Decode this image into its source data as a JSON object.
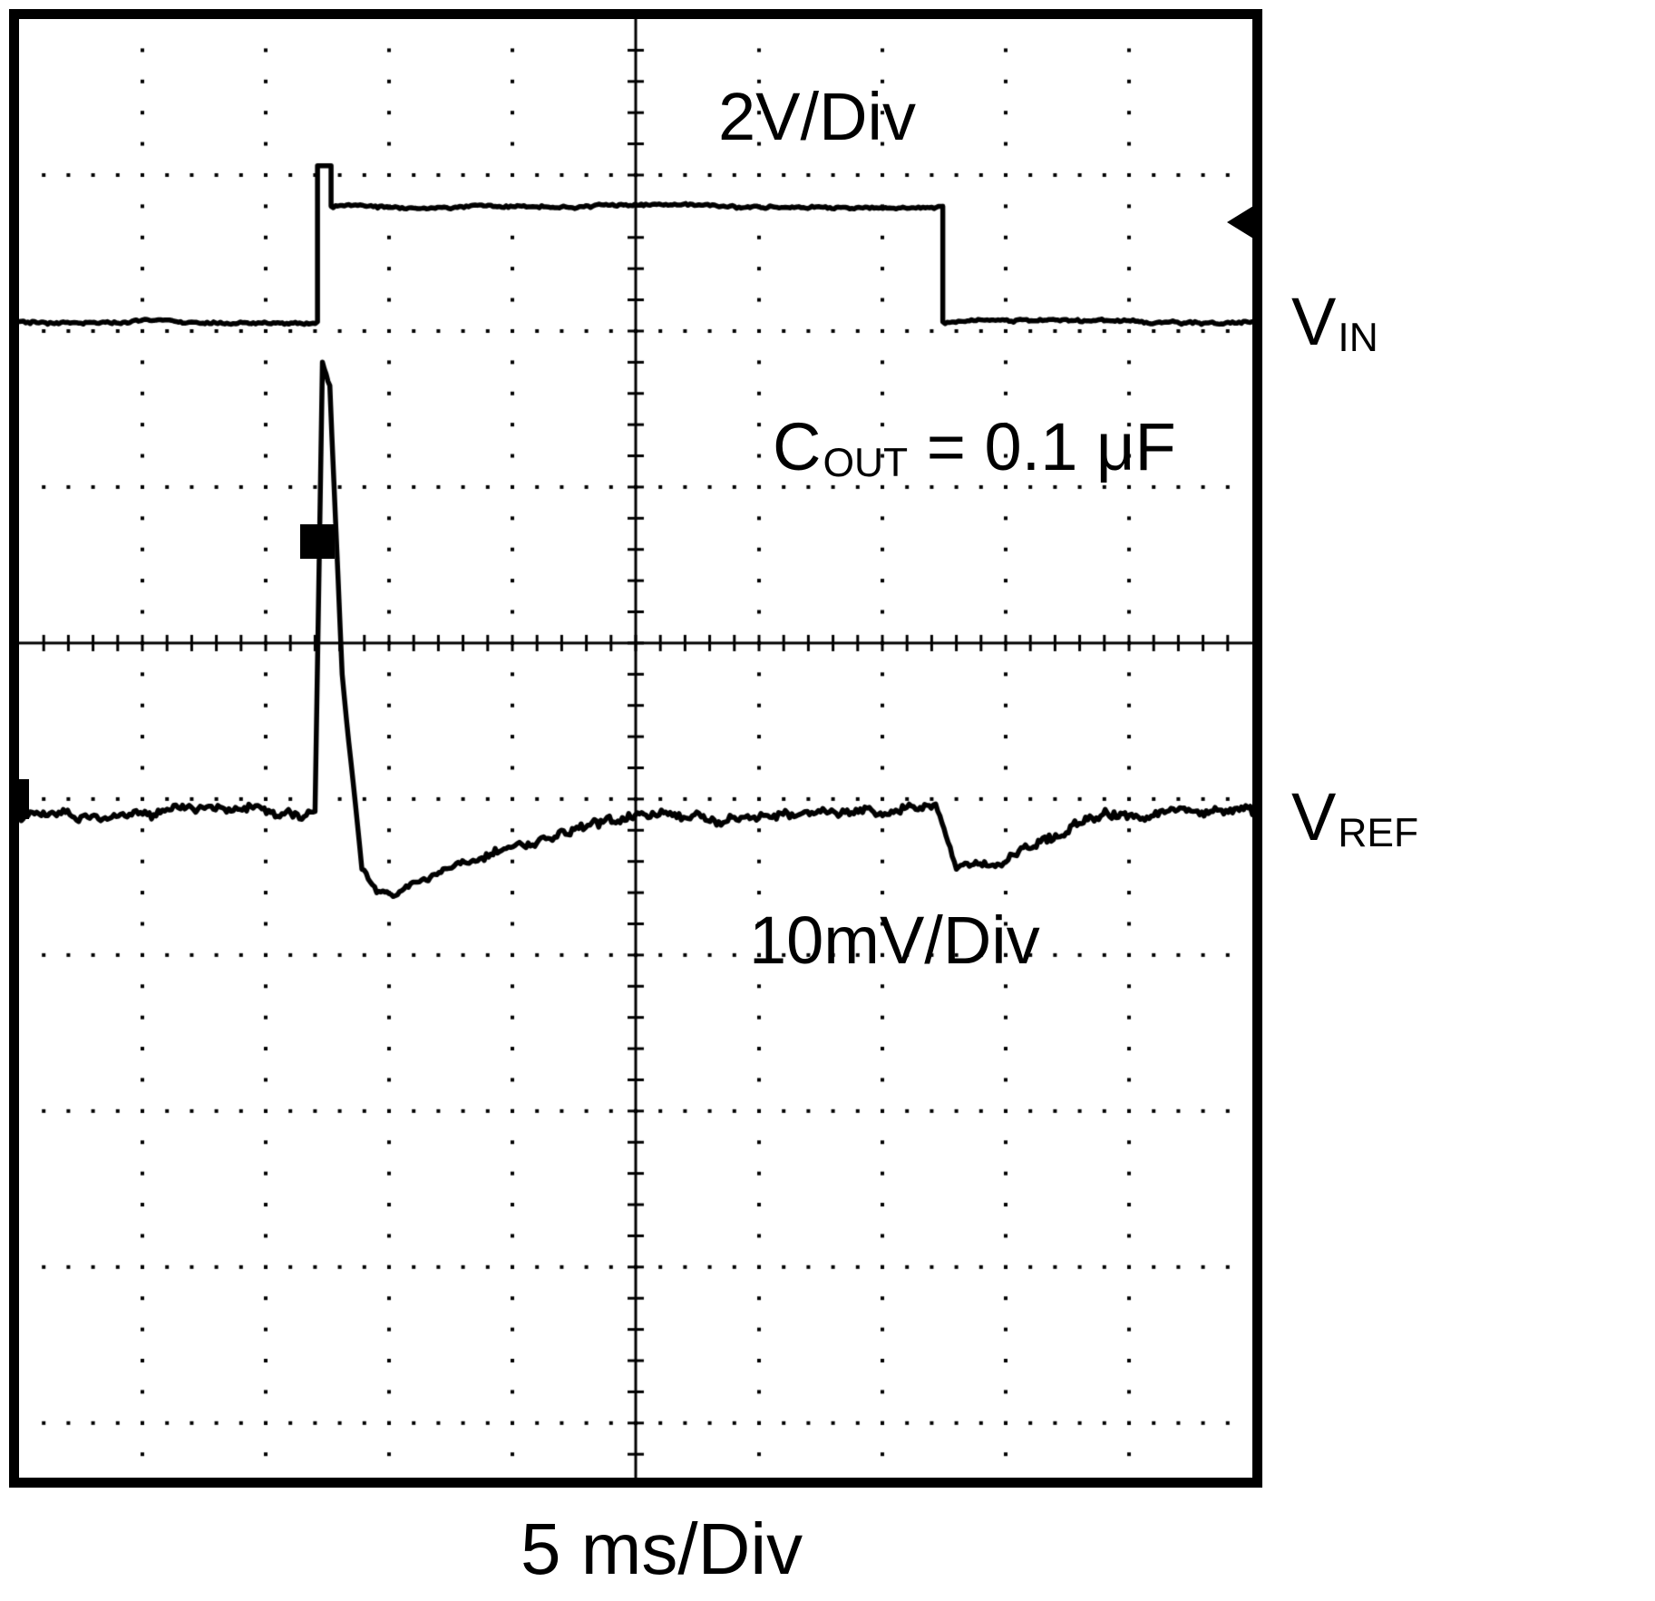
{
  "figure": {
    "kind": "oscilloscope line-transient capture",
    "colors": {
      "trace": "#000000",
      "background": "#ffffff",
      "graticule": "#000000"
    },
    "labels": {
      "vin_scale": "2V/Div",
      "cout_main": "C",
      "cout_sub": "OUT",
      "cout_rest": " = 0.1 μF",
      "vin_main": "V",
      "vin_sub": "IN",
      "vref_main": "V",
      "vref_sub": "REF",
      "vref_scale": "10mV/Div",
      "timebase": "5 ms/Div"
    }
  },
  "chart_data": {
    "type": "line",
    "title": "",
    "xlabel": "5 ms/Div",
    "ylabel": "",
    "x_axis": {
      "divisions": 10,
      "per_division": "5 ms"
    },
    "grid": {
      "cols": 10,
      "rows": 9.35,
      "solid_col": 5,
      "solid_row": 4,
      "dots_per_div": 5,
      "style": "dotted graticule with solid center axes and tick marks"
    },
    "legend": "trace labels at right edge",
    "series": [
      {
        "name": "VIN",
        "vertical_scale": "2V/Div",
        "points_div": [
          [
            0.0,
            1.94,
            0.012
          ],
          [
            2.42,
            1.94,
            0.012
          ],
          [
            2.42,
            0.94,
            0
          ],
          [
            2.53,
            0.94,
            0
          ],
          [
            2.53,
            1.2,
            0
          ],
          [
            7.49,
            1.2,
            0.012
          ],
          [
            7.49,
            1.94,
            0
          ],
          [
            10.0,
            1.94,
            0.012
          ]
        ]
      },
      {
        "name": "VREF",
        "vertical_scale": "10mV/Div",
        "points_div": [
          [
            0.0,
            5.11,
            0.04
          ],
          [
            2.4,
            5.08,
            0.04
          ],
          [
            2.46,
            2.2,
            0.01
          ],
          [
            2.52,
            2.35,
            0.01
          ],
          [
            2.62,
            4.2,
            0.015
          ],
          [
            2.78,
            5.45,
            0.018
          ],
          [
            2.9,
            5.6,
            0.018
          ],
          [
            3.05,
            5.62,
            0.02
          ],
          [
            3.3,
            5.52,
            0.025
          ],
          [
            3.7,
            5.4,
            0.03
          ],
          [
            4.2,
            5.28,
            0.035
          ],
          [
            4.7,
            5.18,
            0.038
          ],
          [
            5.1,
            5.12,
            0.04
          ],
          [
            7.45,
            5.08,
            0.04
          ],
          [
            7.6,
            5.45,
            0.025
          ],
          [
            7.95,
            5.42,
            0.03
          ],
          [
            8.3,
            5.25,
            0.035
          ],
          [
            8.7,
            5.12,
            0.038
          ],
          [
            10.0,
            5.1,
            0.04
          ]
        ]
      }
    ],
    "annotations": [
      "2V/Div",
      "COUT = 0.1 μF",
      "VIN",
      "VREF",
      "10mV/Div",
      "5 ms/Div"
    ],
    "markers": {
      "trigger_square_div": [
        2.42,
        3.35
      ],
      "right_edge_arrow_div_y": 1.3,
      "left_edge_notch_div_y": 5.0
    }
  }
}
